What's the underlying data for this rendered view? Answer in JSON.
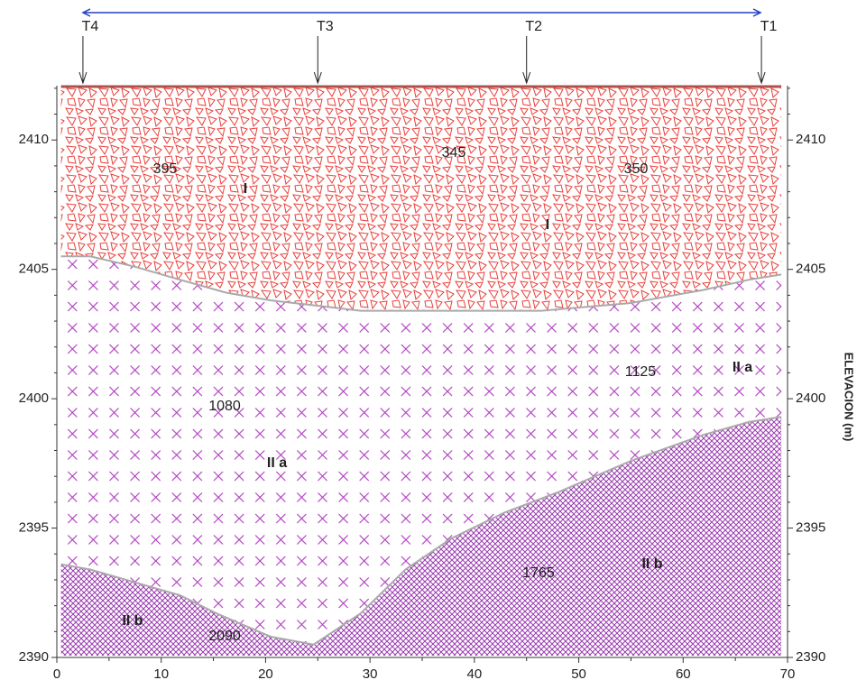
{
  "chart_data": {
    "type": "profile",
    "ylabel": "ELEVACION  (m)",
    "xlim": [
      0,
      70
    ],
    "xticks": [
      0,
      10,
      20,
      30,
      40,
      50,
      60,
      70
    ],
    "ylim": [
      2390,
      2412.1
    ],
    "yticks": [
      2390,
      2395,
      2400,
      2405,
      2410
    ],
    "markers": [
      {
        "label": "T4",
        "x": 2.5
      },
      {
        "label": "T3",
        "x": 25
      },
      {
        "label": "T2",
        "x": 45
      },
      {
        "label": "T1",
        "x": 67.5
      }
    ],
    "layers": [
      {
        "name": "I",
        "color": "#e8413c"
      },
      {
        "name": "II a",
        "color": "#b040c0"
      },
      {
        "name": "II b",
        "color": "#9a3cb0"
      }
    ],
    "boundaries": [
      {
        "x": [
          0.4,
          3.2,
          7.5,
          11.8,
          16.2,
          20.5,
          24.8,
          29.1,
          37.8,
          46.4,
          55,
          61.9,
          66.3,
          69.4
        ],
        "values": [
          2405.5,
          2405.5,
          2405.1,
          2404.6,
          2404.1,
          2403.8,
          2403.6,
          2403.4,
          2403.4,
          2403.4,
          2403.7,
          2404.2,
          2404.6,
          2404.8
        ]
      },
      {
        "x": [
          0.4,
          3.2,
          7.5,
          11.8,
          15.3,
          20.5,
          24.6,
          29.1,
          33.4,
          37.8,
          42.9,
          48.1,
          55,
          61.9,
          66.3,
          69.4
        ],
        "values": [
          2393.6,
          2393.4,
          2392.9,
          2392.4,
          2391.7,
          2390.8,
          2390.5,
          2391.7,
          2393.4,
          2394.6,
          2395.6,
          2396.4,
          2397.6,
          2398.6,
          2399.1,
          2399.3
        ]
      }
    ],
    "velocities": [
      395,
      345,
      350,
      1080,
      1125,
      1765,
      2090
    ],
    "layer_labels": [
      "I",
      "I",
      "II a",
      "II a",
      "II b",
      "II b"
    ]
  }
}
